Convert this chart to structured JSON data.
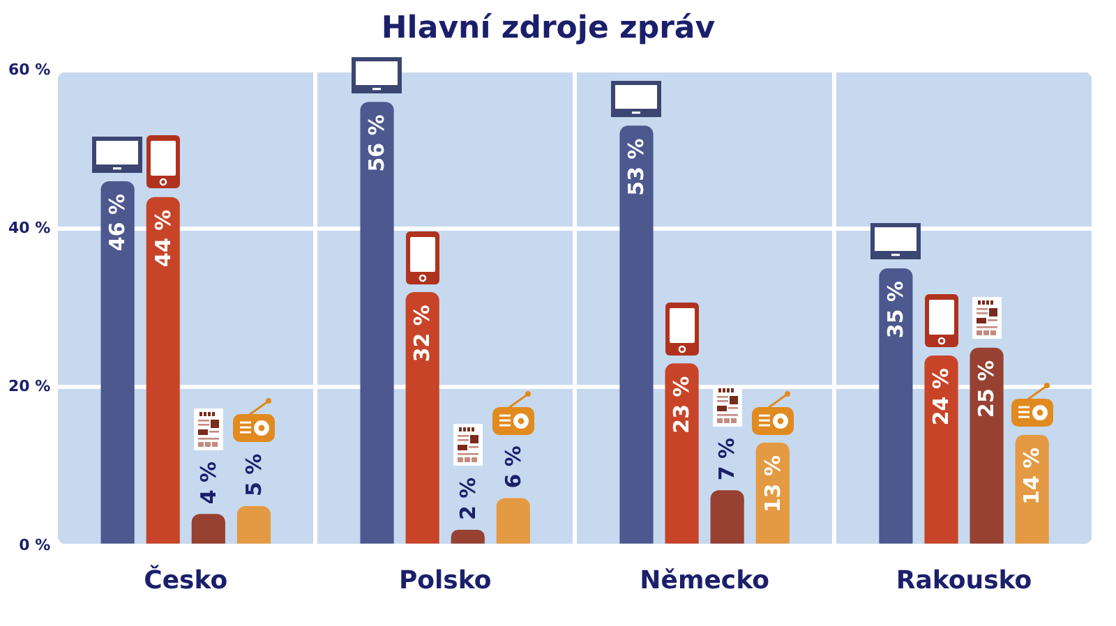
{
  "chart_data": {
    "type": "bar",
    "title": "Hlavní zdroje zpráv",
    "categories": [
      "Česko",
      "Polsko",
      "Německo",
      "Rakousko"
    ],
    "series": [
      {
        "color": "#4c588e",
        "values": [
          46,
          56,
          53,
          35
        ],
        "value_labels": [
          "46 %",
          "56 %",
          "53 %",
          "35 %"
        ]
      },
      {
        "color": "#c84428",
        "values": [
          44,
          32,
          23,
          24
        ],
        "value_labels": [
          "44 %",
          "32 %",
          "23 %",
          "24 %"
        ]
      },
      {
        "color": "#974133",
        "values": [
          4,
          2,
          7,
          25
        ],
        "value_labels": [
          "4 %",
          "2 %",
          "7 %",
          "25 %"
        ]
      },
      {
        "color": "#e49a42",
        "values": [
          5,
          6,
          13,
          14
        ],
        "value_labels": [
          "5 %",
          "6 %",
          "13 %",
          "14 %"
        ]
      }
    ],
    "ylim": [
      0,
      60
    ],
    "yticks": [
      {
        "value": 0,
        "label": "0 %"
      },
      {
        "value": 20,
        "label": "20 %"
      },
      {
        "value": 40,
        "label": "40 %"
      },
      {
        "value": 60,
        "label": "60 %"
      }
    ],
    "grid": true
  }
}
